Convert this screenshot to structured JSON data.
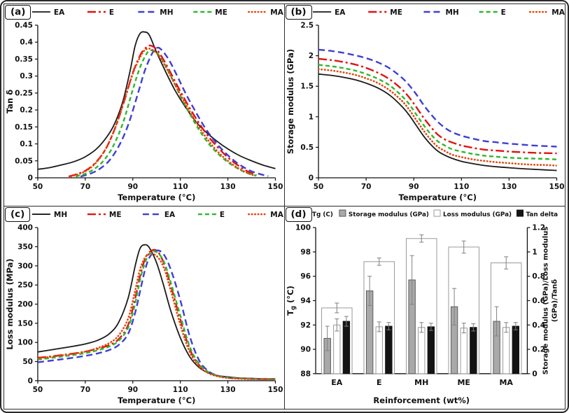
{
  "figure": {
    "background": "#ffffff",
    "border_color": "#2a2a2a"
  },
  "chart_data": [
    {
      "panel_label": "(a)",
      "panel_id": "a",
      "type": "line",
      "xlabel": "Temperature (°C)",
      "ylabel": "Tan δ",
      "xlim": [
        50,
        150
      ],
      "ylim": [
        0,
        0.45
      ],
      "xticks": [
        50,
        70,
        90,
        110,
        130,
        150
      ],
      "yticks": [
        0,
        0.05,
        0.1,
        0.15,
        0.2,
        0.25,
        0.3,
        0.35,
        0.4,
        0.45
      ],
      "legend_position": "top",
      "grid": false,
      "series": [
        {
          "name": "EA",
          "color": "#1a1a1a",
          "style": "solid",
          "width": 1.8,
          "x": [
            50,
            55,
            60,
            65,
            70,
            75,
            80,
            83,
            86,
            89,
            91,
            93,
            95,
            97,
            100,
            104,
            108,
            112,
            116,
            120,
            125,
            130,
            135,
            140,
            145,
            150
          ],
          "y": [
            0.025,
            0.03,
            0.038,
            0.047,
            0.062,
            0.087,
            0.13,
            0.17,
            0.23,
            0.32,
            0.39,
            0.425,
            0.43,
            0.42,
            0.37,
            0.31,
            0.255,
            0.21,
            0.17,
            0.14,
            0.11,
            0.085,
            0.065,
            0.05,
            0.037,
            0.027
          ]
        },
        {
          "name": "E",
          "color": "#e01313",
          "style": "dashdot",
          "width": 2.4,
          "x": [
            63,
            67,
            71,
            75,
            79,
            83,
            87,
            90,
            93,
            95,
            97,
            99,
            101,
            104,
            107,
            110,
            114,
            118,
            122,
            126,
            130,
            134,
            138,
            142
          ],
          "y": [
            0.004,
            0.012,
            0.025,
            0.05,
            0.09,
            0.155,
            0.24,
            0.31,
            0.36,
            0.38,
            0.39,
            0.385,
            0.37,
            0.335,
            0.295,
            0.255,
            0.205,
            0.16,
            0.12,
            0.088,
            0.06,
            0.038,
            0.02,
            0.008
          ]
        },
        {
          "name": "MH",
          "color": "#3f3fd3",
          "style": "dash",
          "width": 2.4,
          "x": [
            68,
            72,
            76,
            80,
            84,
            88,
            92,
            95,
            98,
            100,
            102,
            105,
            108,
            112,
            116,
            120,
            124,
            128,
            132,
            136,
            140,
            144,
            147
          ],
          "y": [
            0.004,
            0.012,
            0.026,
            0.05,
            0.092,
            0.155,
            0.245,
            0.315,
            0.365,
            0.383,
            0.378,
            0.35,
            0.31,
            0.252,
            0.2,
            0.152,
            0.112,
            0.08,
            0.054,
            0.034,
            0.019,
            0.01,
            0.005
          ]
        },
        {
          "name": "ME",
          "color": "#2db92d",
          "style": "shortdash",
          "width": 2.4,
          "x": [
            66,
            70,
            74,
            78,
            82,
            86,
            90,
            93,
            96,
            98,
            100,
            103,
            106,
            110,
            114,
            118,
            122,
            126,
            130,
            134,
            138,
            142
          ],
          "y": [
            0.004,
            0.012,
            0.027,
            0.053,
            0.097,
            0.165,
            0.26,
            0.325,
            0.368,
            0.376,
            0.37,
            0.34,
            0.3,
            0.242,
            0.188,
            0.14,
            0.1,
            0.07,
            0.046,
            0.028,
            0.014,
            0.006
          ]
        },
        {
          "name": "MA",
          "color": "#e2470d",
          "style": "dot",
          "width": 2.6,
          "x": [
            64,
            68,
            72,
            76,
            80,
            84,
            88,
            91,
            94,
            96,
            98,
            101,
            104,
            107,
            110,
            114,
            118,
            122,
            126,
            130,
            134,
            138,
            141
          ],
          "y": [
            0.004,
            0.013,
            0.028,
            0.057,
            0.105,
            0.175,
            0.265,
            0.325,
            0.367,
            0.38,
            0.378,
            0.36,
            0.325,
            0.285,
            0.245,
            0.195,
            0.148,
            0.108,
            0.075,
            0.05,
            0.03,
            0.015,
            0.007
          ]
        }
      ]
    },
    {
      "panel_label": "(b)",
      "panel_id": "b",
      "type": "line",
      "xlabel": "Temperature (°C)",
      "ylabel": "Storage modulus (GPa)",
      "xlim": [
        50,
        150
      ],
      "ylim": [
        0,
        2.5
      ],
      "xticks": [
        50,
        70,
        90,
        110,
        130,
        150
      ],
      "yticks": [
        0,
        0.5,
        1,
        1.5,
        2,
        2.5
      ],
      "legend_position": "top",
      "grid": false,
      "series": [
        {
          "name": "EA",
          "color": "#1a1a1a",
          "style": "solid",
          "width": 1.8,
          "x": [
            50,
            55,
            60,
            65,
            70,
            75,
            80,
            85,
            88,
            91,
            94,
            97,
            100,
            103,
            106,
            110,
            115,
            120,
            125,
            130,
            135,
            140,
            145,
            150
          ],
          "y": [
            1.7,
            1.68,
            1.65,
            1.61,
            1.55,
            1.47,
            1.35,
            1.17,
            1.03,
            0.86,
            0.69,
            0.55,
            0.44,
            0.37,
            0.32,
            0.27,
            0.23,
            0.2,
            0.18,
            0.165,
            0.15,
            0.14,
            0.13,
            0.12
          ]
        },
        {
          "name": "ME",
          "color": "#e01313",
          "style": "dashdot",
          "width": 2.4,
          "x": [
            50,
            55,
            60,
            65,
            70,
            75,
            80,
            85,
            88,
            91,
            94,
            97,
            100,
            103,
            106,
            110,
            115,
            120,
            125,
            130,
            135,
            140,
            145,
            150
          ],
          "y": [
            1.95,
            1.93,
            1.9,
            1.86,
            1.8,
            1.72,
            1.61,
            1.45,
            1.32,
            1.16,
            0.99,
            0.84,
            0.71,
            0.63,
            0.58,
            0.53,
            0.49,
            0.46,
            0.445,
            0.43,
            0.42,
            0.41,
            0.405,
            0.4
          ]
        },
        {
          "name": "MH",
          "color": "#3f3fd3",
          "style": "dash",
          "width": 2.4,
          "x": [
            50,
            55,
            60,
            65,
            70,
            75,
            80,
            85,
            88,
            91,
            94,
            97,
            100,
            103,
            106,
            110,
            115,
            120,
            125,
            130,
            135,
            140,
            145,
            150
          ],
          "y": [
            2.1,
            2.08,
            2.05,
            2.01,
            1.96,
            1.89,
            1.79,
            1.64,
            1.52,
            1.37,
            1.2,
            1.05,
            0.92,
            0.82,
            0.75,
            0.69,
            0.64,
            0.6,
            0.58,
            0.56,
            0.545,
            0.53,
            0.52,
            0.51
          ]
        },
        {
          "name": "E",
          "color": "#2db92d",
          "style": "shortdash",
          "width": 2.4,
          "x": [
            50,
            55,
            60,
            65,
            70,
            75,
            80,
            85,
            88,
            91,
            94,
            97,
            100,
            103,
            106,
            110,
            115,
            120,
            125,
            130,
            135,
            140,
            145,
            150
          ],
          "y": [
            1.85,
            1.83,
            1.8,
            1.76,
            1.7,
            1.62,
            1.51,
            1.34,
            1.21,
            1.04,
            0.87,
            0.72,
            0.6,
            0.53,
            0.47,
            0.43,
            0.39,
            0.36,
            0.345,
            0.33,
            0.32,
            0.315,
            0.31,
            0.3
          ]
        },
        {
          "name": "MA",
          "color": "#e2470d",
          "style": "dot",
          "width": 2.6,
          "x": [
            50,
            55,
            60,
            65,
            70,
            75,
            80,
            85,
            88,
            91,
            94,
            97,
            100,
            103,
            106,
            110,
            115,
            120,
            125,
            130,
            135,
            140,
            145,
            150
          ],
          "y": [
            1.78,
            1.76,
            1.73,
            1.69,
            1.63,
            1.55,
            1.43,
            1.26,
            1.12,
            0.95,
            0.78,
            0.63,
            0.51,
            0.44,
            0.38,
            0.34,
            0.3,
            0.275,
            0.255,
            0.24,
            0.225,
            0.215,
            0.21,
            0.2
          ]
        }
      ]
    },
    {
      "panel_label": "(c)",
      "panel_id": "c",
      "type": "line",
      "xlabel": "Temperature (°C)",
      "ylabel": "Loss modulus (MPa)",
      "xlim": [
        50,
        150
      ],
      "ylim": [
        0,
        400
      ],
      "xticks": [
        50,
        70,
        90,
        110,
        130,
        150
      ],
      "yticks": [
        0,
        50,
        100,
        150,
        200,
        250,
        300,
        350,
        400
      ],
      "legend_position": "top",
      "grid": false,
      "series": [
        {
          "name": "MH",
          "color": "#1a1a1a",
          "style": "solid",
          "width": 1.8,
          "x": [
            50,
            55,
            60,
            65,
            70,
            75,
            80,
            84,
            88,
            91,
            93,
            95,
            97,
            100,
            103,
            106,
            110,
            114,
            118,
            122,
            126,
            130,
            135,
            140,
            145,
            150
          ],
          "y": [
            75,
            80,
            85,
            90,
            96,
            105,
            122,
            152,
            215,
            300,
            345,
            355,
            347,
            308,
            248,
            182,
            112,
            62,
            34,
            20,
            13,
            10,
            7,
            6,
            5,
            5
          ]
        },
        {
          "name": "ME",
          "color": "#e01313",
          "style": "dashdot",
          "width": 2.4,
          "x": [
            50,
            55,
            60,
            65,
            70,
            75,
            80,
            84,
            88,
            91,
            93,
            95,
            97,
            100,
            103,
            106,
            110,
            114,
            118,
            122,
            126,
            130,
            135,
            140,
            145,
            150
          ],
          "y": [
            60,
            63,
            67,
            71,
            76,
            83,
            93,
            108,
            145,
            215,
            272,
            315,
            336,
            340,
            308,
            248,
            160,
            82,
            40,
            21,
            12,
            8,
            6,
            5,
            4,
            4
          ]
        },
        {
          "name": "EA",
          "color": "#3f3fd3",
          "style": "dash",
          "width": 2.4,
          "x": [
            50,
            55,
            60,
            65,
            70,
            75,
            80,
            84,
            88,
            91,
            93,
            95,
            97,
            100,
            103,
            106,
            110,
            114,
            118,
            122,
            126,
            130,
            135,
            140,
            145,
            150
          ],
          "y": [
            48,
            52,
            56,
            60,
            65,
            71,
            80,
            93,
            122,
            178,
            232,
            286,
            322,
            340,
            330,
            290,
            210,
            115,
            52,
            24,
            13,
            8,
            6,
            5,
            4,
            4
          ]
        },
        {
          "name": "E",
          "color": "#2db92d",
          "style": "shortdash",
          "width": 2.4,
          "x": [
            50,
            55,
            60,
            65,
            70,
            75,
            80,
            84,
            88,
            91,
            93,
            95,
            97,
            100,
            103,
            106,
            110,
            114,
            118,
            122,
            126,
            130,
            135,
            140,
            145,
            150
          ],
          "y": [
            55,
            59,
            63,
            67,
            72,
            79,
            89,
            104,
            138,
            202,
            262,
            306,
            332,
            336,
            312,
            256,
            170,
            88,
            43,
            22,
            12,
            8,
            6,
            5,
            4,
            4
          ]
        },
        {
          "name": "MA",
          "color": "#e2470d",
          "style": "dot",
          "width": 2.6,
          "x": [
            50,
            55,
            60,
            65,
            70,
            75,
            80,
            84,
            88,
            91,
            93,
            95,
            97,
            100,
            103,
            106,
            110,
            114,
            118,
            122,
            126,
            130,
            135,
            140,
            145,
            150
          ],
          "y": [
            58,
            62,
            66,
            70,
            76,
            85,
            98,
            118,
            162,
            236,
            290,
            320,
            331,
            326,
            296,
            235,
            146,
            74,
            37,
            19,
            11,
            7,
            5,
            4,
            4,
            3
          ]
        }
      ]
    },
    {
      "panel_label": "(d)",
      "panel_id": "d",
      "type": "bar",
      "xlabel": "Reinforcement (wt%)",
      "ylabel_left": "Tg (°C)",
      "ylabel_left_parts": [
        "T",
        "g",
        " (°C)"
      ],
      "ylabel_right_lines": [
        "Storage modulus (GPa)/Loss modulus",
        "(GPa)/Tanδ"
      ],
      "ylim_left": [
        88,
        100
      ],
      "ylim_right": [
        0,
        1.2
      ],
      "yticks_left": [
        88,
        90,
        92,
        94,
        96,
        98,
        100
      ],
      "yticks_right": [
        0,
        0.2,
        0.4,
        0.6,
        0.8,
        1,
        1.2
      ],
      "categories": [
        "EA",
        "E",
        "MH",
        "ME",
        "MA"
      ],
      "grid": false,
      "series": [
        {
          "name": "Tg (C)",
          "axis": "left",
          "fill": "#ffffff",
          "stroke": "#9a9a9a",
          "values": [
            93.4,
            97.2,
            99.1,
            98.4,
            97.1
          ],
          "errors": [
            0.4,
            0.3,
            0.3,
            0.5,
            0.5
          ]
        },
        {
          "name": "Storage modulus (GPa)",
          "axis": "right",
          "fill": "#a9a9a9",
          "stroke": "#5a5a5a",
          "values": [
            0.29,
            0.68,
            0.77,
            0.55,
            0.43
          ],
          "errors": [
            0.1,
            0.12,
            0.2,
            0.15,
            0.12
          ]
        },
        {
          "name": "Loss modulus (GPa)",
          "axis": "right",
          "fill": "#ffffff",
          "stroke": "#9a9a9a",
          "values": [
            0.4,
            0.385,
            0.38,
            0.375,
            0.38
          ],
          "errors": [
            0.05,
            0.04,
            0.04,
            0.04,
            0.04
          ]
        },
        {
          "name": "Tan delta",
          "axis": "right",
          "fill": "#141414",
          "stroke": "#141414",
          "values": [
            0.43,
            0.39,
            0.385,
            0.38,
            0.39
          ],
          "errors": [
            0.04,
            0.03,
            0.03,
            0.03,
            0.03
          ]
        }
      ]
    }
  ]
}
